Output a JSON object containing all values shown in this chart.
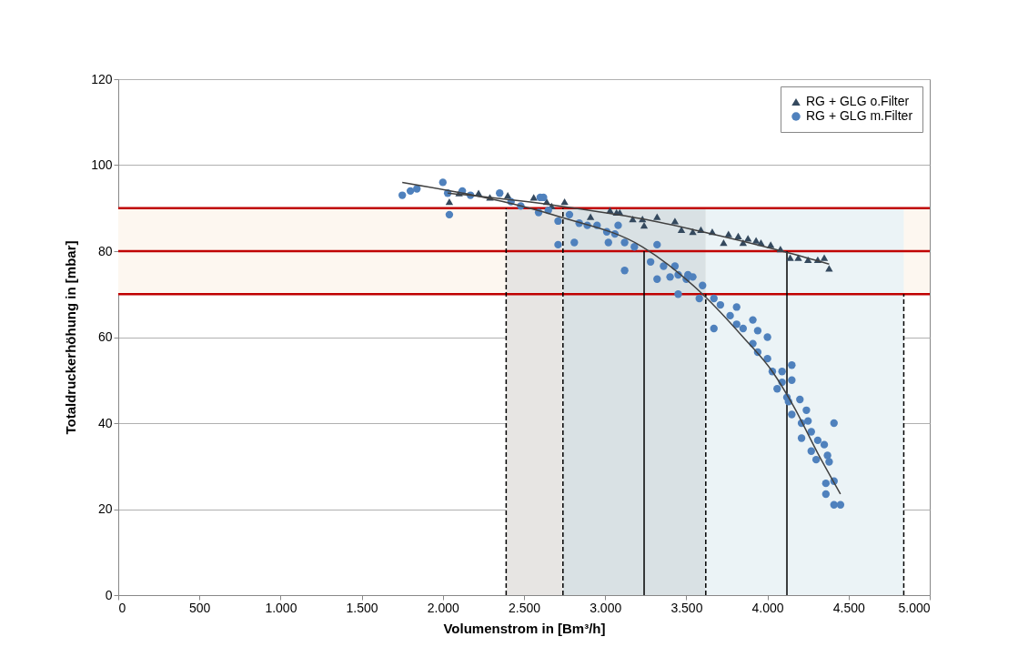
{
  "chart_data": {
    "type": "scatter",
    "xlabel": "Volumenstrom in [Bm³/h]",
    "ylabel": "Totaldruckerhöhung in [mbar]",
    "xlim": [
      0,
      5000
    ],
    "xticks": [
      0,
      500,
      {
        "value": 1000,
        "label": "1.000"
      },
      {
        "value": 1500,
        "label": "1.500"
      },
      {
        "value": 2000,
        "label": "2.000"
      },
      {
        "value": 2500,
        "label": "2.500"
      },
      {
        "value": 3000,
        "label": "3.000"
      },
      {
        "value": 3500,
        "label": "3.500"
      },
      {
        "value": 4000,
        "label": "4.000"
      },
      {
        "value": 4500,
        "label": "4.500"
      },
      {
        "value": 5000,
        "label": "5.000"
      }
    ],
    "ylim": [
      0,
      120
    ],
    "yticks": [
      0,
      20,
      40,
      60,
      80,
      100,
      120
    ],
    "grid": "y",
    "legend": "top right",
    "bands": [
      {
        "axis": "y",
        "from": 70,
        "to": 90,
        "color": "#fdf7f0"
      }
    ],
    "ref_lines": [
      {
        "axis": "y",
        "value": 90,
        "color": "#c00000"
      },
      {
        "axis": "y",
        "value": 80,
        "color": "#c00000"
      },
      {
        "axis": "y",
        "value": 70,
        "color": "#c00000"
      }
    ],
    "series": [
      {
        "type": "area",
        "color": "#e7e5e3",
        "x": [
          2390,
          2740
        ],
        "values": [
          90,
          90
        ]
      },
      {
        "type": "area",
        "color": "#d9e1e4",
        "x": [
          2740,
          3620
        ],
        "values": [
          90,
          90
        ]
      },
      {
        "type": "area",
        "color": "#ebf3f6",
        "x": [
          3620,
          4840
        ],
        "values": [
          90,
          90
        ]
      },
      {
        "type": "line",
        "color": "#000000",
        "line_style": "dashed",
        "x": [
          2390,
          2390
        ],
        "values": [
          0,
          90
        ]
      },
      {
        "type": "line",
        "color": "#000000",
        "line_style": "dashed",
        "x": [
          2740,
          2740
        ],
        "values": [
          0,
          90
        ]
      },
      {
        "type": "line",
        "color": "#000000",
        "line_style": "solid",
        "x": [
          3240,
          3240
        ],
        "values": [
          0,
          80
        ]
      },
      {
        "type": "line",
        "color": "#000000",
        "line_style": "dashed",
        "x": [
          3620,
          3620
        ],
        "values": [
          0,
          70
        ]
      },
      {
        "type": "line",
        "color": "#000000",
        "line_style": "solid",
        "x": [
          4120,
          4120
        ],
        "values": [
          0,
          80
        ]
      },
      {
        "type": "line",
        "color": "#000000",
        "line_style": "dashed",
        "x": [
          4840,
          4840
        ],
        "values": [
          0,
          70
        ]
      },
      {
        "name": "RG + GLG o.Filter",
        "color": "#34495e",
        "marker": "triangle",
        "x": [
          2040,
          2100,
          2220,
          2290,
          2340,
          2400,
          2560,
          2640,
          2670,
          2750,
          2910,
          3030,
          3070,
          3090,
          3170,
          3230,
          3240,
          3320,
          3430,
          3470,
          3540,
          3590,
          3660,
          3730,
          3760,
          3820,
          3850,
          3880,
          3930,
          3960,
          4020,
          4080,
          4140,
          4190,
          4250,
          4310,
          4350,
          4380
        ],
        "values": [
          91.5,
          93.5,
          93.5,
          92.5,
          null,
          93,
          92.5,
          91.5,
          90.5,
          91.5,
          88,
          89.5,
          89,
          89,
          87.5,
          87.5,
          86,
          88,
          87,
          85,
          84.5,
          85,
          84.5,
          82,
          84,
          83.5,
          82,
          83,
          82.5,
          82,
          81.5,
          80.5,
          78.5,
          78.5,
          78,
          78,
          78.5,
          76
        ]
      },
      {
        "name": "RG + GLG m.Filter",
        "color": "#4f81bd",
        "marker": "circle",
        "x": [
          1750,
          1800,
          1840,
          2000,
          2030,
          2040,
          2120,
          2170,
          2350,
          2420,
          2480,
          2590,
          2600,
          2620,
          2650,
          2710,
          2710,
          2780,
          2810,
          2840,
          2890,
          2950,
          3010,
          3020,
          3060,
          3080,
          3120,
          3120,
          3180,
          3280,
          3320,
          3320,
          3360,
          3400,
          3430,
          3450,
          3450,
          3500,
          3510,
          3540,
          3580,
          3600,
          3670,
          3670,
          3710,
          3770,
          3810,
          3810,
          3850,
          3910,
          3910,
          3940,
          3940,
          4000,
          4000,
          4030,
          4060,
          4090,
          4090,
          4120,
          4130,
          4150,
          4150,
          4150,
          4200,
          4210,
          4210,
          4240,
          4250,
          4270,
          4270,
          4300,
          4310,
          4350,
          4360,
          4360,
          4370,
          4380,
          4410,
          4410,
          4410,
          4450
        ],
        "values": [
          93,
          94,
          94.5,
          96,
          93.5,
          88.5,
          94,
          93,
          93.5,
          91.5,
          90.5,
          89,
          92.5,
          92.5,
          89.5,
          87,
          81.5,
          88.5,
          82,
          86.5,
          86,
          86,
          84.5,
          82,
          84,
          86,
          82,
          75.5,
          81,
          77.5,
          81.5,
          73.5,
          76.5,
          74,
          76.5,
          74.5,
          70,
          73.5,
          74.5,
          74,
          69,
          72,
          69,
          62,
          67.5,
          65,
          67,
          63,
          62,
          64,
          58.5,
          61.5,
          56.5,
          60,
          55,
          52,
          48,
          52,
          49.5,
          46,
          45,
          53.5,
          50,
          42,
          45.5,
          36.5,
          40,
          43,
          40.5,
          38,
          33.5,
          31.5,
          36,
          35,
          26,
          23.5,
          32.5,
          31,
          40,
          26.5,
          21,
          21
        ]
      },
      {
        "type": "line",
        "color": "#404040",
        "line_style": "solid",
        "x": [
          1750,
          2720,
          3230,
          3600,
          3850,
          4030,
          4160,
          4310,
          4450
        ],
        "values": [
          96,
          88,
          81,
          70,
          60,
          52,
          44,
          33,
          23.5
        ]
      },
      {
        "type": "line",
        "color": "#404040",
        "line_style": "solid",
        "x": [
          2030,
          2720,
          3230,
          3600,
          4090,
          4380
        ],
        "values": [
          93.5,
          90.5,
          87.5,
          84.5,
          80,
          77
        ]
      }
    ]
  }
}
